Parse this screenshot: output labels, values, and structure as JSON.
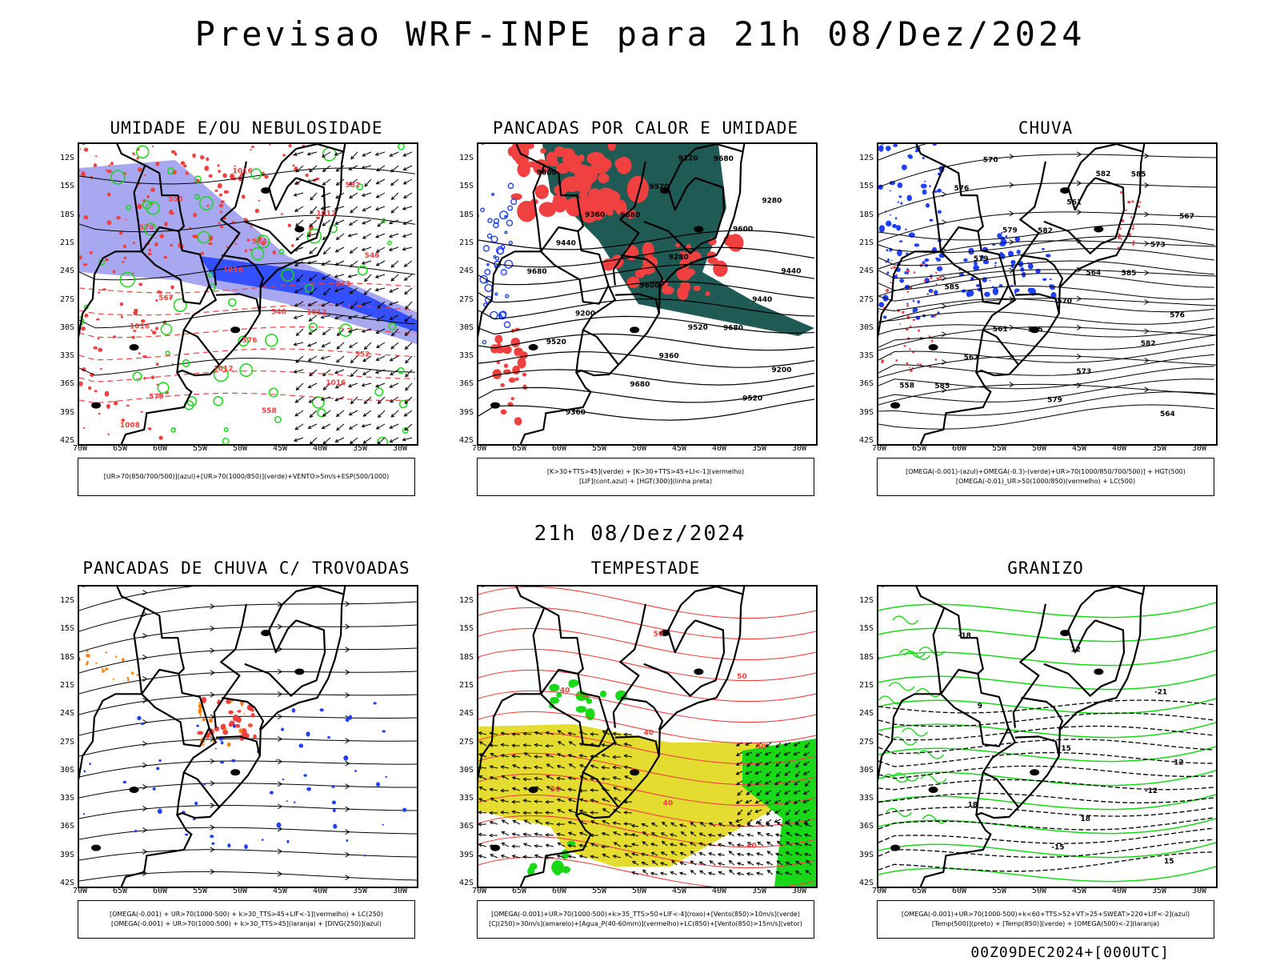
{
  "header": {
    "title": "Previsao WRF-INPE  para 21h 08/Dez/2024",
    "mid_time": "21h 08/Dez/2024",
    "run": "00Z09DEC2024+[000UTC]"
  },
  "axes": {
    "lat_labels": [
      "12S",
      "15S",
      "18S",
      "21S",
      "24S",
      "27S",
      "30S",
      "33S",
      "36S",
      "39S",
      "42S"
    ],
    "lon_labels": [
      "70W",
      "65W",
      "60W",
      "55W",
      "50W",
      "45W",
      "40W",
      "35W",
      "30W"
    ]
  },
  "colors": {
    "blue": "#2040ff",
    "light_blue": "#a8a8f0",
    "green": "#18d818",
    "red": "#f04040",
    "dark_teal": "#1f5a55",
    "yellow": "#e4dc30",
    "orange": "#ff7f00"
  },
  "panels": [
    {
      "title": "UMIDADE E/OU NEBULOSIDADE",
      "legend": [
        "[UR>70(850/700/500)](azul)+[UR>70(1000/850)](verde)+VENTO>5m/s+ESP(500/1000)"
      ],
      "contour_labels": [
        "1012",
        "1012",
        "1008",
        "1012",
        "1016",
        "1016",
        "1016",
        "1016",
        "570",
        "573",
        "576",
        "579",
        "582",
        "564",
        "567",
        "552",
        "558",
        "555",
        "546",
        "540"
      ]
    },
    {
      "title": "PANCADAS POR CALOR E UMIDADE",
      "legend": [
        "[K>30+TTS>45](verde) + [K>30+TTS>45+LI<-1](vermelho)",
        "[LIF](cont.azul) + [HGT(300)](linha preta)"
      ],
      "contour_labels": [
        "9680",
        "9680",
        "9680",
        "9680",
        "9680",
        "9600",
        "9600",
        "9600",
        "9520",
        "9520",
        "9520",
        "9440",
        "9440",
        "9360",
        "9360",
        "9280",
        "9280",
        "9200",
        "9200",
        "9120",
        "9360",
        "9440",
        "9520"
      ]
    },
    {
      "title": "CHUVA",
      "legend": [
        "[OMEGA(-0.001)-(azul)+OMEGA(-0.3)-(verde)+UR>70(1000/850/700/500)] + HGT(500)",
        "[OMEGA(-0.01)_UR>50(1000/850)(vermelho) + LC(500)"
      ],
      "contour_labels": [
        "585",
        "585",
        "585",
        "585",
        "582",
        "585",
        "582",
        "579",
        "576",
        "573",
        "570",
        "567",
        "564",
        "561",
        "579",
        "576",
        "573",
        "570",
        "567",
        "564",
        "561",
        "558",
        "582",
        "579"
      ]
    },
    {
      "title": "PANCADAS DE CHUVA C/ TROVOADAS",
      "legend": [
        "[OMEGA(-0.001) + UR>70(1000-500) + k>30_TTS>45+LIF<-1](vermelho) + LC(250)",
        "[OMEGA(-0.001) + UR>70(1000-500) + k>30_TTS>45](laranja) + [DIVG(250)](azul)"
      ],
      "contour_labels": []
    },
    {
      "title": "TEMPESTADE",
      "legend": [
        "[OMEGA(-0.001)+UR>70(1000-500)+k>35_TTS>50+LIF<-4](roxo)+[Vento(850)>10m/s](verde)",
        "[CJ(250)>30m/s](amarelo)+[Agua_P(40-60mm)](vermelho)+LC(850)+[Vento(850)>15m/s](vetor)"
      ],
      "contour_labels": [
        "50",
        "40",
        "50",
        "40",
        "50",
        "40",
        "50",
        "40"
      ]
    },
    {
      "title": "GRANIZO",
      "legend": [
        "[OMEGA(-0.001)+UR>70(1000-500)+k<60+TTS>52+VT>25+SWEAT>220+LIF<-2](azul)",
        "[Temp(500)](preto) + [Temp(850)](verde) + [OMEGA(500)<-2](laranja)"
      ],
      "contour_labels": [
        "-12",
        "-15",
        "-18",
        "-21",
        "15",
        "18",
        "15",
        "12",
        "9",
        "12",
        "18"
      ]
    }
  ]
}
